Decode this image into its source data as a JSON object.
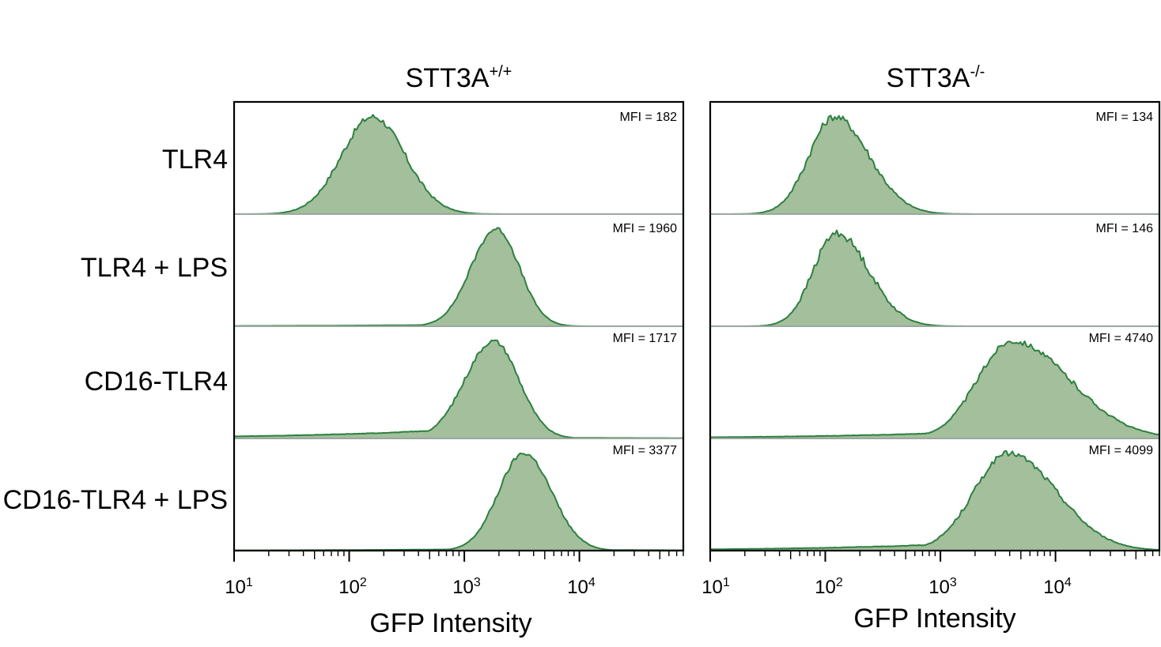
{
  "colors": {
    "fill": "#a3bf9c",
    "line": "#2e8040",
    "axis": "#000000",
    "separator": "#9aa8a0"
  },
  "row_labels": [
    "TLR4",
    "TLR4 + LPS",
    "CD16-TLR4",
    "CD16-TLR4 + LPS"
  ],
  "x_axis": {
    "label": "GFP Intensity",
    "scale": "log10",
    "range": [
      10,
      80000
    ],
    "tick_labels": [
      {
        "value": 10,
        "base": "10",
        "exp": "1"
      },
      {
        "value": 100,
        "base": "10",
        "exp": "2"
      },
      {
        "value": 1000,
        "base": "10",
        "exp": "3"
      },
      {
        "value": 10000,
        "base": "10",
        "exp": "4"
      }
    ]
  },
  "chart_data": {
    "type": "area",
    "description": "Flow cytometry GFP histograms, one per condition and cell line",
    "xlabel": "GFP Intensity",
    "xscale": "log",
    "xlim": [
      10,
      80000
    ],
    "panels": [
      {
        "title_base": "STT3A",
        "title_sup": "+/+",
        "series": [
          {
            "name": "TLR4",
            "mfi_label": "MFI = 182",
            "peak": 160,
            "w_left": 0.27,
            "w_right": 0.28,
            "height": 0.92,
            "left_floor": 0.0,
            "right_floor": 0.0,
            "noise": 0.03
          },
          {
            "name": "TLR4 + LPS",
            "mfi_label": "MFI = 1960",
            "peak": 1900,
            "w_left": 0.22,
            "w_right": 0.2,
            "height": 0.92,
            "left_floor": 0.02,
            "right_floor": 0.0,
            "noise": 0.02
          },
          {
            "name": "CD16-TLR4",
            "mfi_label": "MFI = 1717",
            "peak": 1800,
            "w_left": 0.25,
            "w_right": 0.22,
            "height": 0.92,
            "left_floor": 0.12,
            "right_floor": 0.01,
            "noise": 0.02
          },
          {
            "name": "CD16-TLR4 + LPS",
            "mfi_label": "MFI = 3377",
            "peak": 3300,
            "w_left": 0.22,
            "w_right": 0.24,
            "height": 0.92,
            "left_floor": 0.02,
            "right_floor": 0.01,
            "noise": 0.02
          }
        ]
      },
      {
        "title_base": "STT3A",
        "title_sup": "-/-",
        "series": [
          {
            "name": "TLR4",
            "mfi_label": "MFI = 134",
            "peak": 120,
            "w_left": 0.22,
            "w_right": 0.3,
            "height": 0.92,
            "left_floor": 0.0,
            "right_floor": 0.0,
            "noise": 0.035
          },
          {
            "name": "TLR4 + LPS",
            "mfi_label": "MFI = 146",
            "peak": 125,
            "w_left": 0.2,
            "w_right": 0.28,
            "height": 0.88,
            "left_floor": 0.0,
            "right_floor": 0.0,
            "noise": 0.035
          },
          {
            "name": "CD16-TLR4",
            "mfi_label": "MFI = 4740",
            "peak": 4200,
            "w_left": 0.3,
            "w_right": 0.5,
            "height": 0.92,
            "left_floor": 0.09,
            "right_floor": 0.0,
            "noise": 0.025
          },
          {
            "name": "CD16-TLR4 + LPS",
            "mfi_label": "MFI = 4099",
            "peak": 3900,
            "w_left": 0.3,
            "w_right": 0.42,
            "height": 0.92,
            "left_floor": 0.1,
            "right_floor": 0.0,
            "noise": 0.025
          }
        ]
      }
    ]
  }
}
